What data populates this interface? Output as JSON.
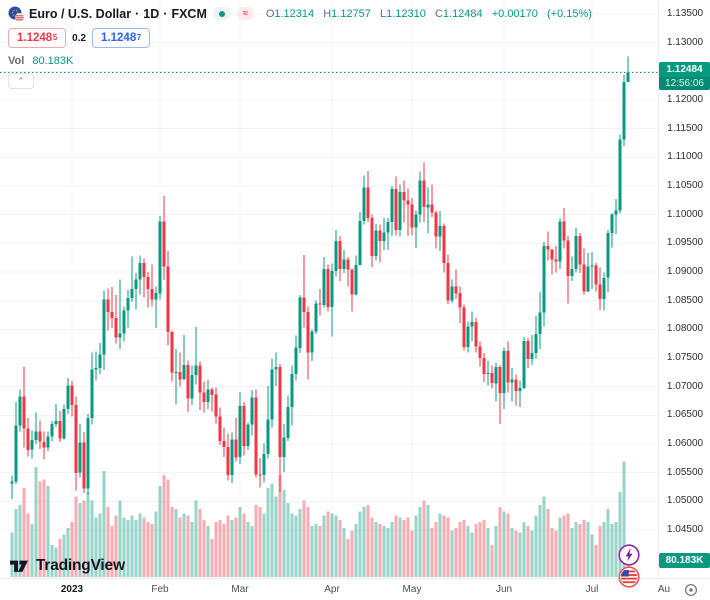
{
  "colors": {
    "up": "#089981",
    "down": "#f23645",
    "vol_up": "rgba(8,153,129,0.42)",
    "vol_down": "rgba(242,54,69,0.42)",
    "grid": "#f0f3fa",
    "accent_blue": "#2962ff",
    "text": "#131722",
    "muted": "#6a6d78",
    "badge": "#089981"
  },
  "header": {
    "symbol": "Euro / U.S. Dollar",
    "separator": "·",
    "timeframe": "1D",
    "exchange": "FXCM",
    "ohlc": {
      "o_label": "O",
      "o": "1.12314",
      "h_label": "H",
      "h": "1.12757",
      "l_label": "L",
      "l": "1.12310",
      "c_label": "C",
      "c": "1.12484"
    },
    "change": "+0.00170",
    "change_pct": "(+0.15%)",
    "delayed_symbol": "≈"
  },
  "quote": {
    "bid_main": "1.1248",
    "bid_sup": "5",
    "spread": "0.2",
    "ask_main": "1.1248",
    "ask_sup": "7"
  },
  "indicator": {
    "label": "Vol",
    "value": "80.183K"
  },
  "controls": {
    "collapse_glyph": "⌃"
  },
  "price_label": {
    "value": "1.12484",
    "countdown": "12:56:06"
  },
  "volume_label": {
    "value": "80.183K"
  },
  "footer": {
    "brand": "TradingView"
  },
  "chart_data": {
    "type": "candlestick_with_volume",
    "title": "Euro / U.S. Dollar · 1D · FXCM",
    "current_price": 1.12484,
    "price_axis": {
      "min": 1.045,
      "max": 1.135,
      "grid_step": 0.005
    },
    "y_ticks": [
      "1.13500",
      "1.13000",
      "1.12000",
      "1.11500",
      "1.11000",
      "1.10500",
      "1.10000",
      "1.09500",
      "1.09000",
      "1.08500",
      "1.08000",
      "1.07500",
      "1.07000",
      "1.06500",
      "1.06000",
      "1.05500",
      "1.05000",
      "1.04500"
    ],
    "x_ticks": [
      {
        "label": "2023",
        "index": 15,
        "major": true
      },
      {
        "label": "Feb",
        "index": 37
      },
      {
        "label": "Mar",
        "index": 57
      },
      {
        "label": "Apr",
        "index": 80
      },
      {
        "label": "May",
        "index": 100
      },
      {
        "label": "Jun",
        "index": 123
      },
      {
        "label": "Jul",
        "index": 145
      },
      {
        "label": "Au",
        "index": 163
      }
    ],
    "volume_unit": "K",
    "last_volume": 80.183,
    "candles": [
      [
        1.0531,
        1.0545,
        1.0504,
        1.0535,
        210
      ],
      [
        1.0535,
        1.0673,
        1.053,
        1.0632,
        320
      ],
      [
        1.0632,
        1.0695,
        1.0622,
        1.0683,
        340
      ],
      [
        1.0683,
        1.0735,
        1.0594,
        1.0627,
        420
      ],
      [
        1.0627,
        1.0645,
        1.0578,
        1.059,
        300
      ],
      [
        1.059,
        1.0624,
        1.0575,
        1.0607,
        250
      ],
      [
        1.0607,
        1.0655,
        1.06,
        1.0622,
        520
      ],
      [
        1.0622,
        1.0641,
        1.0591,
        1.0604,
        450
      ],
      [
        1.0604,
        1.0622,
        1.0573,
        1.0594,
        460
      ],
      [
        1.0594,
        1.0622,
        1.0588,
        1.0613,
        430
      ],
      [
        1.0613,
        1.064,
        1.0605,
        1.0635,
        150
      ],
      [
        1.0635,
        1.067,
        1.063,
        1.064,
        140
      ],
      [
        1.064,
        1.0658,
        1.0604,
        1.061,
        180
      ],
      [
        1.061,
        1.0669,
        1.0608,
        1.0661,
        200
      ],
      [
        1.0661,
        1.0715,
        1.0652,
        1.0702,
        230
      ],
      [
        1.0702,
        1.071,
        1.0648,
        1.0668,
        260
      ],
      [
        1.0668,
        1.0683,
        1.0519,
        1.055,
        380
      ],
      [
        1.055,
        1.0635,
        1.0542,
        1.0603,
        350
      ],
      [
        1.0603,
        1.0621,
        1.0515,
        1.0522,
        360
      ],
      [
        1.0522,
        1.0652,
        1.0512,
        1.0645,
        400
      ],
      [
        1.0645,
        1.076,
        1.0634,
        1.073,
        360
      ],
      [
        1.073,
        1.0761,
        1.0711,
        1.0733,
        280
      ],
      [
        1.0733,
        1.0776,
        1.0722,
        1.0756,
        300
      ],
      [
        1.0756,
        1.0868,
        1.0729,
        1.0852,
        500
      ],
      [
        1.0852,
        1.0871,
        1.0798,
        1.083,
        330
      ],
      [
        1.083,
        1.0874,
        1.0802,
        1.082,
        240
      ],
      [
        1.082,
        1.086,
        1.0775,
        1.0786,
        290
      ],
      [
        1.0786,
        1.0887,
        1.0766,
        1.0793,
        360
      ],
      [
        1.0793,
        1.084,
        1.0779,
        1.0833,
        280
      ],
      [
        1.0833,
        1.0869,
        1.0803,
        1.0855,
        270
      ],
      [
        1.0855,
        1.0927,
        1.0848,
        1.087,
        290
      ],
      [
        1.087,
        1.0898,
        1.0835,
        1.0887,
        270
      ],
      [
        1.0887,
        1.0929,
        1.0861,
        1.0916,
        300
      ],
      [
        1.0916,
        1.0924,
        1.0856,
        1.0891,
        280
      ],
      [
        1.0891,
        1.09,
        1.0838,
        1.087,
        260
      ],
      [
        1.087,
        1.0913,
        1.084,
        1.0852,
        250
      ],
      [
        1.0852,
        1.0875,
        1.0802,
        1.0863,
        310
      ],
      [
        1.0863,
        1.0998,
        1.0852,
        1.0988,
        430
      ],
      [
        1.0988,
        1.1033,
        1.0886,
        1.091,
        480
      ],
      [
        1.091,
        1.0937,
        1.0772,
        1.0795,
        460
      ],
      [
        1.0795,
        1.0798,
        1.0709,
        1.0725,
        330
      ],
      [
        1.0725,
        1.0766,
        1.0669,
        1.0726,
        320
      ],
      [
        1.0726,
        1.076,
        1.07,
        1.0713,
        280
      ],
      [
        1.0713,
        1.079,
        1.0711,
        1.0738,
        300
      ],
      [
        1.0738,
        1.0746,
        1.0656,
        1.0679,
        290
      ],
      [
        1.0679,
        1.0737,
        1.0668,
        1.072,
        260
      ],
      [
        1.072,
        1.0804,
        1.0704,
        1.0737,
        360
      ],
      [
        1.0737,
        1.0744,
        1.0659,
        1.069,
        320
      ],
      [
        1.069,
        1.0709,
        1.0655,
        1.0673,
        270
      ],
      [
        1.0673,
        1.0712,
        1.0661,
        1.0695,
        240
      ],
      [
        1.0695,
        1.0699,
        1.0657,
        1.0686,
        180
      ],
      [
        1.0686,
        1.0699,
        1.0636,
        1.0648,
        260
      ],
      [
        1.0648,
        1.0664,
        1.0598,
        1.0605,
        270
      ],
      [
        1.0605,
        1.0629,
        1.0577,
        1.0595,
        250
      ],
      [
        1.0595,
        1.0618,
        1.0536,
        1.0546,
        290
      ],
      [
        1.0546,
        1.062,
        1.0532,
        1.0608,
        270
      ],
      [
        1.0608,
        1.0645,
        1.057,
        1.0577,
        280
      ],
      [
        1.0577,
        1.0691,
        1.0565,
        1.0666,
        330
      ],
      [
        1.0666,
        1.0673,
        1.058,
        1.0597,
        300
      ],
      [
        1.0597,
        1.0638,
        1.059,
        1.0634,
        260
      ],
      [
        1.0634,
        1.0694,
        1.0615,
        1.0681,
        240
      ],
      [
        1.0681,
        1.0695,
        1.0542,
        1.0547,
        340
      ],
      [
        1.0547,
        1.0576,
        1.0524,
        1.0546,
        330
      ],
      [
        1.0546,
        1.0601,
        1.0533,
        1.0583,
        300
      ],
      [
        1.0583,
        1.0701,
        1.0575,
        1.0643,
        420
      ],
      [
        1.0643,
        1.0749,
        1.0629,
        1.073,
        440
      ],
      [
        1.073,
        1.076,
        1.0701,
        1.0734,
        380
      ],
      [
        1.0734,
        1.074,
        1.0516,
        1.0577,
        480
      ],
      [
        1.0577,
        1.0635,
        1.0551,
        1.0611,
        410
      ],
      [
        1.0611,
        1.0685,
        1.0605,
        1.0665,
        350
      ],
      [
        1.0665,
        1.0737,
        1.0632,
        1.0722,
        300
      ],
      [
        1.0722,
        1.0789,
        1.0711,
        1.0768,
        290
      ],
      [
        1.0768,
        1.086,
        1.0759,
        1.0856,
        320
      ],
      [
        1.0856,
        1.093,
        1.0803,
        1.083,
        360
      ],
      [
        1.083,
        1.084,
        1.0713,
        1.076,
        330
      ],
      [
        1.076,
        1.08,
        1.0745,
        1.0796,
        240
      ],
      [
        1.0796,
        1.085,
        1.0792,
        1.0845,
        250
      ],
      [
        1.0845,
        1.087,
        1.0824,
        1.0843,
        240
      ],
      [
        1.0843,
        1.0926,
        1.0838,
        1.0905,
        290
      ],
      [
        1.0905,
        1.0913,
        1.0831,
        1.0839,
        310
      ],
      [
        1.0839,
        1.0915,
        1.0788,
        1.0902,
        300
      ],
      [
        1.0902,
        1.0973,
        1.0892,
        1.0954,
        290
      ],
      [
        1.0954,
        1.0963,
        1.0884,
        1.0905,
        270
      ],
      [
        1.0905,
        1.0938,
        1.0898,
        1.0922,
        230
      ],
      [
        1.0922,
        1.0926,
        1.0875,
        1.0904,
        180
      ],
      [
        1.0904,
        1.0906,
        1.0831,
        1.0861,
        220
      ],
      [
        1.0861,
        1.0929,
        1.0859,
        1.0912,
        250
      ],
      [
        1.0912,
        1.1005,
        1.0911,
        1.0989,
        310
      ],
      [
        1.0989,
        1.1068,
        1.0983,
        1.1047,
        330
      ],
      [
        1.1047,
        1.1076,
        1.0987,
        1.0994,
        340
      ],
      [
        1.0994,
        1.1,
        1.0909,
        1.0928,
        280
      ],
      [
        1.0928,
        1.0984,
        1.092,
        1.0972,
        260
      ],
      [
        1.0972,
        1.0983,
        1.0917,
        1.0954,
        250
      ],
      [
        1.0954,
        1.0994,
        1.0938,
        1.0969,
        240
      ],
      [
        1.0969,
        1.0994,
        1.0938,
        1.0987,
        230
      ],
      [
        1.0987,
        1.105,
        1.0963,
        1.1045,
        260
      ],
      [
        1.1045,
        1.1067,
        1.0964,
        1.0973,
        290
      ],
      [
        1.0973,
        1.1053,
        1.0962,
        1.104,
        280
      ],
      [
        1.104,
        1.106,
        1.0986,
        1.1025,
        270
      ],
      [
        1.1025,
        1.1046,
        1.0963,
        1.1018,
        280
      ],
      [
        1.1018,
        1.1029,
        1.0964,
        1.0978,
        220
      ],
      [
        1.0978,
        1.1007,
        1.0942,
        1.1,
        290
      ],
      [
        1.1,
        1.1075,
        1.0986,
        1.106,
        330
      ],
      [
        1.106,
        1.1091,
        1.0987,
        1.1013,
        360
      ],
      [
        1.1013,
        1.1047,
        1.0967,
        1.1018,
        340
      ],
      [
        1.1018,
        1.1053,
        1.0996,
        1.1004,
        230
      ],
      [
        1.1004,
        1.1006,
        1.0941,
        1.0962,
        260
      ],
      [
        1.0962,
        1.1006,
        1.0937,
        1.098,
        300
      ],
      [
        1.098,
        1.0985,
        1.0899,
        1.0916,
        290
      ],
      [
        1.0916,
        1.0931,
        1.0844,
        1.085,
        280
      ],
      [
        1.085,
        1.0887,
        1.0846,
        1.0875,
        220
      ],
      [
        1.0875,
        1.0904,
        1.0853,
        1.0863,
        230
      ],
      [
        1.0863,
        1.0875,
        1.0811,
        1.0838,
        260
      ],
      [
        1.0838,
        1.0843,
        1.0763,
        1.0769,
        270
      ],
      [
        1.0769,
        1.0814,
        1.076,
        1.0805,
        240
      ],
      [
        1.0805,
        1.0831,
        1.078,
        1.0813,
        210
      ],
      [
        1.0813,
        1.082,
        1.076,
        1.077,
        250
      ],
      [
        1.077,
        1.0779,
        1.0735,
        1.075,
        260
      ],
      [
        1.075,
        1.0759,
        1.0708,
        1.0722,
        270
      ],
      [
        1.0722,
        1.0746,
        1.0702,
        1.0724,
        230
      ],
      [
        1.0724,
        1.0737,
        1.0697,
        1.0706,
        150
      ],
      [
        1.0706,
        1.0742,
        1.0674,
        1.0734,
        240
      ],
      [
        1.0734,
        1.0738,
        1.0635,
        1.0689,
        330
      ],
      [
        1.0689,
        1.0768,
        1.0661,
        1.0762,
        310
      ],
      [
        1.0762,
        1.0779,
        1.069,
        1.0707,
        300
      ],
      [
        1.0707,
        1.0733,
        1.0674,
        1.0713,
        230
      ],
      [
        1.0713,
        1.0721,
        1.0667,
        1.0693,
        220
      ],
      [
        1.0693,
        1.0711,
        1.0665,
        1.0698,
        210
      ],
      [
        1.0698,
        1.0787,
        1.0696,
        1.078,
        260
      ],
      [
        1.078,
        1.0785,
        1.0733,
        1.0748,
        240
      ],
      [
        1.0748,
        1.079,
        1.0738,
        1.0759,
        220
      ],
      [
        1.0759,
        1.0823,
        1.0749,
        1.0792,
        290
      ],
      [
        1.0792,
        1.0865,
        1.0766,
        1.0829,
        340
      ],
      [
        1.0829,
        1.0952,
        1.0805,
        1.0945,
        380
      ],
      [
        1.0945,
        1.0971,
        1.092,
        1.0939,
        320
      ],
      [
        1.0939,
        1.094,
        1.0896,
        1.0922,
        230
      ],
      [
        1.0922,
        1.0945,
        1.0899,
        1.0918,
        220
      ],
      [
        1.0918,
        1.0993,
        1.0905,
        1.0988,
        280
      ],
      [
        1.0988,
        1.1012,
        1.0941,
        1.0955,
        290
      ],
      [
        1.0955,
        1.0963,
        1.0845,
        1.0893,
        300
      ],
      [
        1.0893,
        1.0927,
        1.0884,
        1.0905,
        230
      ],
      [
        1.0905,
        1.0977,
        1.0899,
        1.0963,
        260
      ],
      [
        1.0963,
        1.0968,
        1.0898,
        1.0913,
        250
      ],
      [
        1.0913,
        1.0941,
        1.0861,
        1.0866,
        270
      ],
      [
        1.0866,
        1.0933,
        1.0865,
        1.091,
        260
      ],
      [
        1.091,
        1.0935,
        1.087,
        1.0911,
        200
      ],
      [
        1.0911,
        1.0916,
        1.0866,
        1.0878,
        150
      ],
      [
        1.0878,
        1.0908,
        1.0834,
        1.0853,
        240
      ],
      [
        1.0853,
        1.0899,
        1.0833,
        1.089,
        260
      ],
      [
        1.089,
        1.0973,
        1.0865,
        1.0968,
        320
      ],
      [
        1.0968,
        1.1003,
        1.0943,
        1.1,
        250
      ],
      [
        1.1,
        1.1027,
        1.0966,
        1.1007,
        260
      ],
      [
        1.1007,
        1.114,
        1.1002,
        1.1131,
        400
      ],
      [
        1.1131,
        1.1244,
        1.112,
        1.12314,
        545
      ],
      [
        1.12314,
        1.12757,
        1.1231,
        1.12484,
        80.183
      ]
    ]
  }
}
